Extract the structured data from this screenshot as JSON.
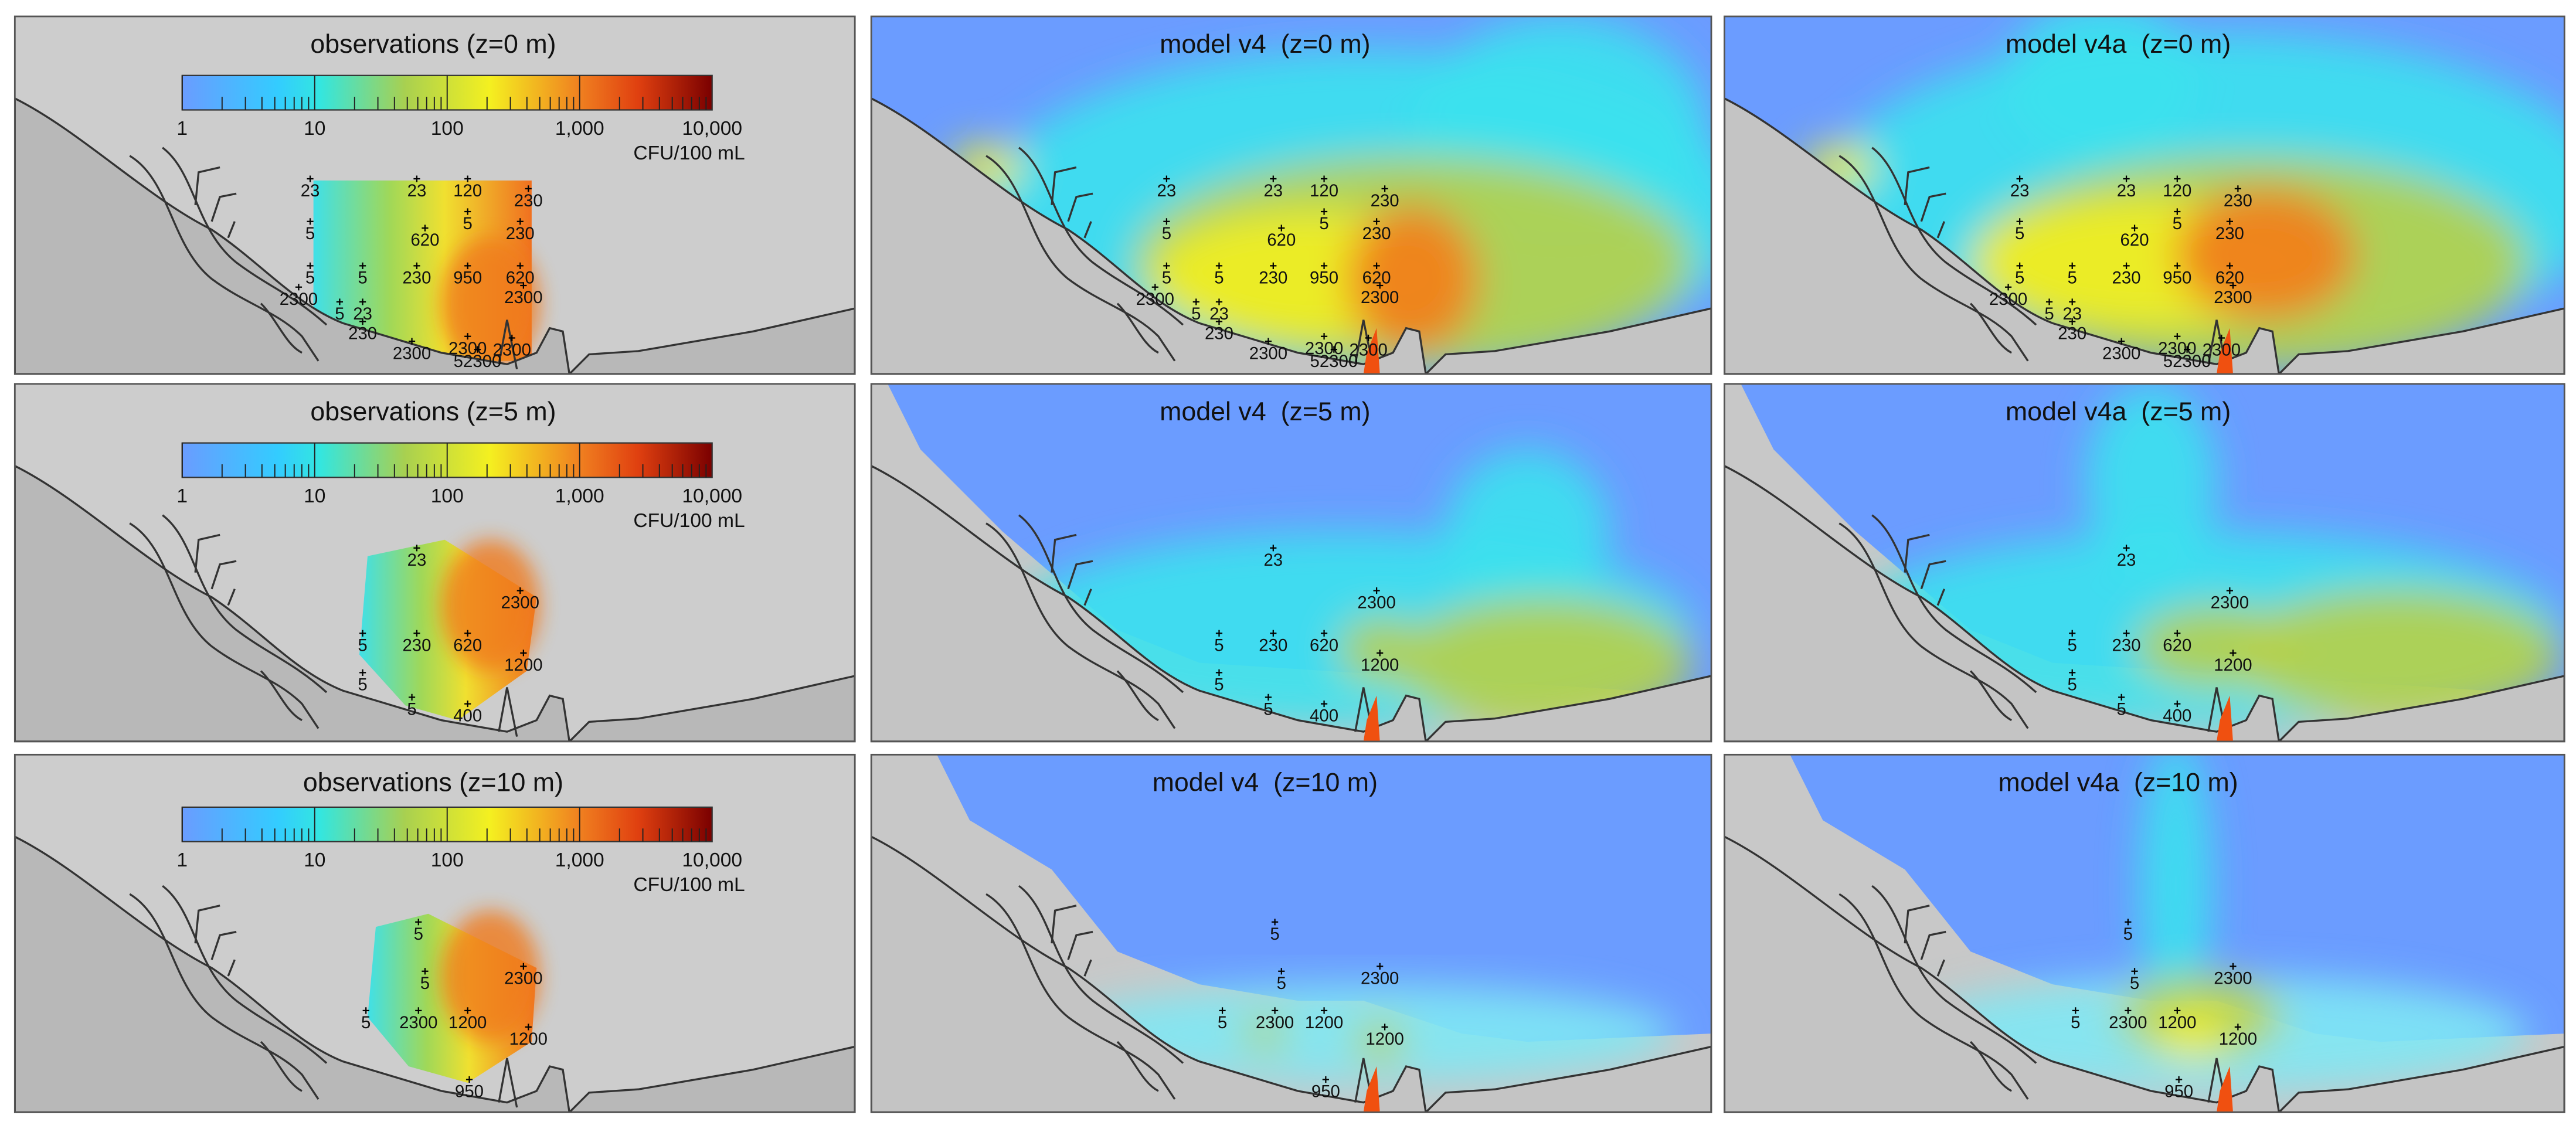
{
  "colorbar": {
    "ticks": [
      "1",
      "10",
      "100",
      "1,000",
      "10,000"
    ],
    "unit": "CFU/100 mL"
  },
  "rows": [
    {
      "panels": [
        {
          "title": "observations (z=0 m)"
        },
        {
          "title": "model v4  (z=0 m)"
        },
        {
          "title": "model v4a  (z=0 m)"
        }
      ],
      "stations": [
        "23",
        "23",
        "120",
        "230",
        "5",
        "620",
        "5",
        "230",
        "5",
        "5",
        "230",
        "950",
        "620",
        "2300",
        "2300",
        "5",
        "23",
        "230",
        "2300",
        "2300",
        "2300",
        "52300"
      ]
    },
    {
      "panels": [
        {
          "title": "observations (z=5 m)"
        },
        {
          "title": "model v4  (z=5 m)"
        },
        {
          "title": "model v4a  (z=5 m)"
        }
      ],
      "stations": [
        "23",
        "2300",
        "5",
        "230",
        "620",
        "1200",
        "5",
        "5",
        "400"
      ]
    },
    {
      "panels": [
        {
          "title": "observations (z=10 m)"
        },
        {
          "title": "model v4  (z=10 m)"
        },
        {
          "title": "model v4a  (z=10 m)"
        }
      ],
      "stations": [
        "5",
        "5",
        "2300",
        "5",
        "2300",
        "1200",
        "1200",
        "950"
      ]
    }
  ]
}
